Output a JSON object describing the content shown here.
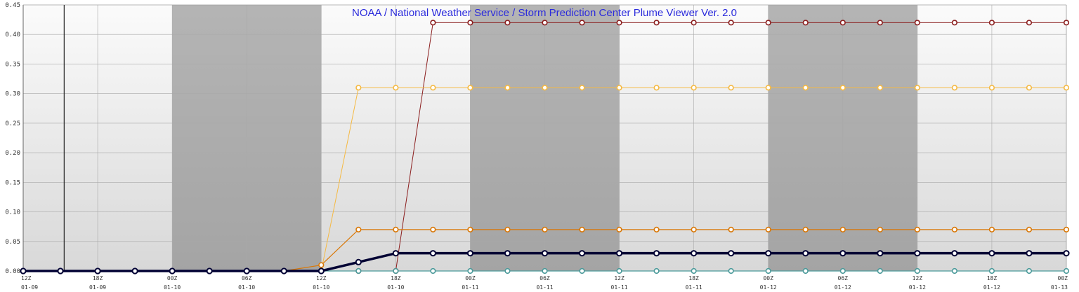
{
  "chart_data": {
    "type": "line",
    "title": "NOAA / National Weather Service / Storm Prediction Center Plume Viewer Ver. 2.0",
    "ylim": [
      0,
      0.45
    ],
    "yticks": [
      "0.00",
      "0.05",
      "0.10",
      "0.15",
      "0.20",
      "0.25",
      "0.30",
      "0.35",
      "0.40",
      "0.45"
    ],
    "x_labels": [
      {
        "index": 0,
        "hour": "12Z",
        "date": "01-09"
      },
      {
        "index": 2,
        "hour": "18Z",
        "date": "01-09"
      },
      {
        "index": 4,
        "hour": "00Z",
        "date": "01-10"
      },
      {
        "index": 6,
        "hour": "06Z",
        "date": "01-10"
      },
      {
        "index": 8,
        "hour": "12Z",
        "date": "01-10"
      },
      {
        "index": 10,
        "hour": "18Z",
        "date": "01-10"
      },
      {
        "index": 12,
        "hour": "00Z",
        "date": "01-11"
      },
      {
        "index": 14,
        "hour": "06Z",
        "date": "01-11"
      },
      {
        "index": 16,
        "hour": "12Z",
        "date": "01-11"
      },
      {
        "index": 18,
        "hour": "18Z",
        "date": "01-11"
      },
      {
        "index": 20,
        "hour": "00Z",
        "date": "01-12"
      },
      {
        "index": 22,
        "hour": "06Z",
        "date": "01-12"
      },
      {
        "index": 24,
        "hour": "12Z",
        "date": "01-12"
      },
      {
        "index": 26,
        "hour": "18Z",
        "date": "01-12"
      },
      {
        "index": 28,
        "hour": "00Z",
        "date": "01-13"
      }
    ],
    "num_points": 29,
    "night_bands": [
      [
        4,
        8
      ],
      [
        12,
        16
      ],
      [
        20,
        24
      ]
    ],
    "current_time_index": 1.1,
    "grid": true,
    "series": [
      {
        "color": "#8b1e1e",
        "width": 1,
        "values": [
          0,
          0,
          0,
          0,
          0,
          0,
          0,
          0,
          0,
          0,
          0,
          0.42,
          0.42,
          0.42,
          0.42,
          0.42,
          0.42,
          0.42,
          0.42,
          0.42,
          0.42,
          0.42,
          0.42,
          0.42,
          0.42,
          0.42,
          0.42,
          0.42,
          0.42
        ]
      },
      {
        "color": "#f5b942",
        "width": 1,
        "values": [
          0,
          0,
          0,
          0,
          0,
          0,
          0,
          0,
          0,
          0.31,
          0.31,
          0.31,
          0.31,
          0.31,
          0.31,
          0.31,
          0.31,
          0.31,
          0.31,
          0.31,
          0.31,
          0.31,
          0.31,
          0.31,
          0.31,
          0.31,
          0.31,
          0.31,
          0.31
        ]
      },
      {
        "color": "#d97706",
        "width": 1.2,
        "values": [
          0,
          0,
          0,
          0,
          0,
          0,
          0,
          0,
          0.01,
          0.07,
          0.07,
          0.07,
          0.07,
          0.07,
          0.07,
          0.07,
          0.07,
          0.07,
          0.07,
          0.07,
          0.07,
          0.07,
          0.07,
          0.07,
          0.07,
          0.07,
          0.07,
          0.07,
          0.07
        ]
      },
      {
        "color": "#4a9a9a",
        "width": 1.2,
        "values": [
          0,
          0,
          0,
          0,
          0,
          0,
          0,
          0,
          0,
          0,
          0,
          0,
          0,
          0,
          0,
          0,
          0,
          0,
          0,
          0,
          0,
          0,
          0,
          0,
          0,
          0,
          0,
          0,
          0
        ]
      },
      {
        "color": "#000033",
        "width": 3.5,
        "values": [
          0,
          0,
          0,
          0,
          0,
          0,
          0,
          0,
          0,
          0.015,
          0.03,
          0.03,
          0.03,
          0.03,
          0.03,
          0.03,
          0.03,
          0.03,
          0.03,
          0.03,
          0.03,
          0.03,
          0.03,
          0.03,
          0.03,
          0.03,
          0.03,
          0.03,
          0.03
        ]
      }
    ]
  }
}
